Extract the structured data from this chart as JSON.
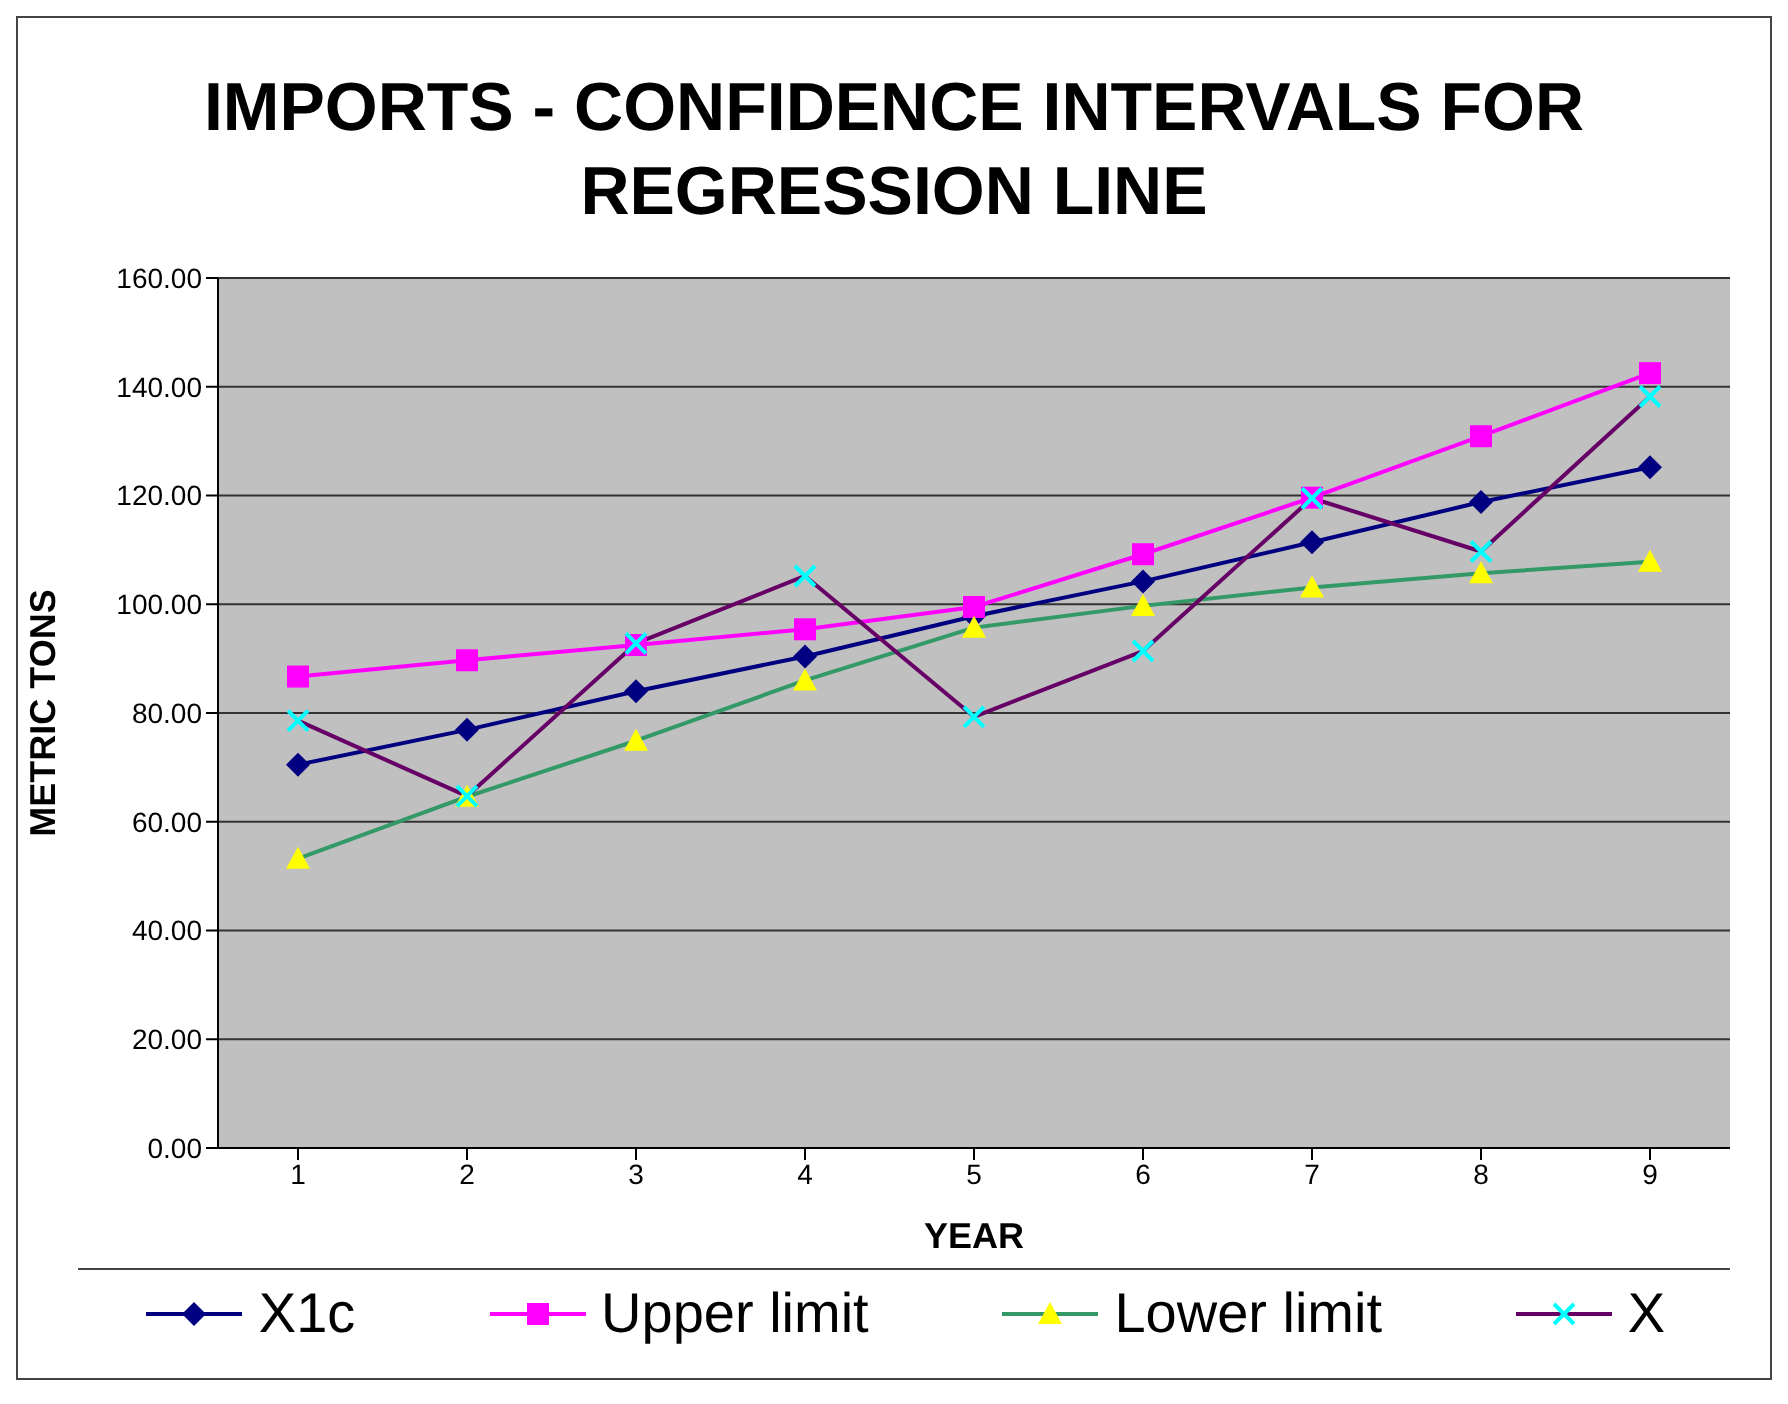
{
  "chart_data": {
    "type": "line",
    "title": "IMPORTS - CONFIDENCE INTERVALS FOR REGRESSION LINE",
    "xlabel": "YEAR",
    "ylabel": "METRIC TONS",
    "categories": [
      "1",
      "2",
      "3",
      "4",
      "5",
      "6",
      "7",
      "8",
      "9"
    ],
    "series": [
      {
        "name": "X1c",
        "color": "#000080",
        "marker": "diamond",
        "values": [
          70.5,
          76.9,
          84.0,
          90.4,
          97.8,
          104.2,
          111.4,
          118.8,
          125.2
        ]
      },
      {
        "name": "Upper limit",
        "color": "#ff00ff",
        "marker": "square",
        "values": [
          86.7,
          89.7,
          92.5,
          95.4,
          99.5,
          109.2,
          119.6,
          130.9,
          142.5
        ]
      },
      {
        "name": "Lower limit",
        "color": "#339966",
        "marker": "triangle",
        "values": [
          53.2,
          64.6,
          74.9,
          86.0,
          95.7,
          99.7,
          103.1,
          105.7,
          107.8
        ]
      },
      {
        "name": "X",
        "color": "#660066",
        "marker": "cross",
        "values": [
          78.6,
          64.7,
          92.8,
          105.2,
          79.3,
          91.4,
          119.5,
          109.7,
          138.2
        ]
      }
    ],
    "ylim": [
      0,
      160
    ],
    "yticks": [
      {
        "value": 0,
        "label": "0.00"
      },
      {
        "value": 20,
        "label": "20.00"
      },
      {
        "value": 40,
        "label": "40.00"
      },
      {
        "value": 60,
        "label": "60.00"
      },
      {
        "value": 80,
        "label": "80.00"
      },
      {
        "value": 100,
        "label": "100.00"
      },
      {
        "value": 120,
        "label": "120.00"
      },
      {
        "value": 140,
        "label": "140.00"
      },
      {
        "value": 160,
        "label": "160.00"
      }
    ],
    "grid": "y",
    "legend": "bottom"
  }
}
